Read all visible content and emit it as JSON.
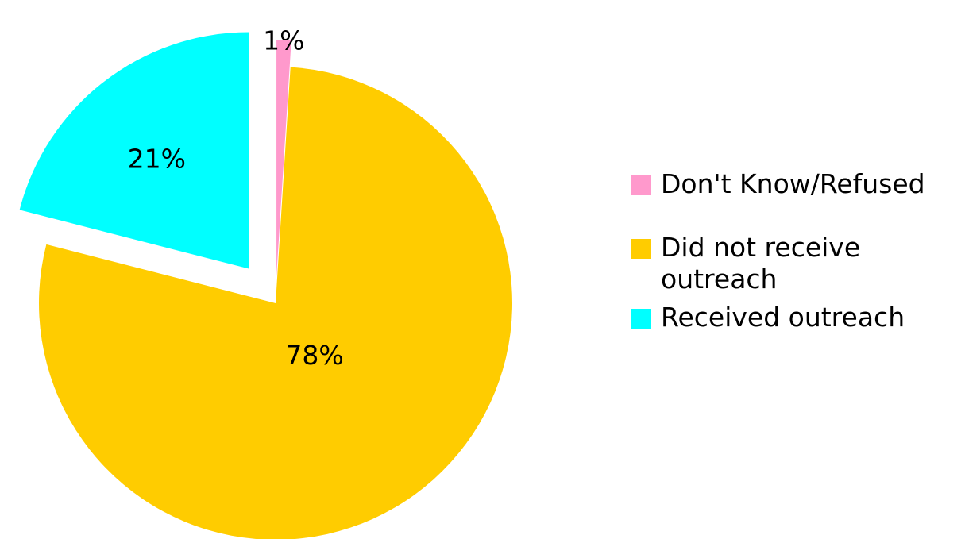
{
  "chart_data": {
    "type": "pie",
    "exploded": true,
    "categories": [
      "Don't Know/Refused",
      "Did not receive outreach",
      "Received outreach"
    ],
    "values": [
      1,
      78,
      21
    ],
    "data_labels": [
      "1%",
      "78%",
      "21%"
    ],
    "colors": [
      "#ff99cc",
      "#ffcc00",
      "#00ffff"
    ],
    "legend_position": "right"
  }
}
